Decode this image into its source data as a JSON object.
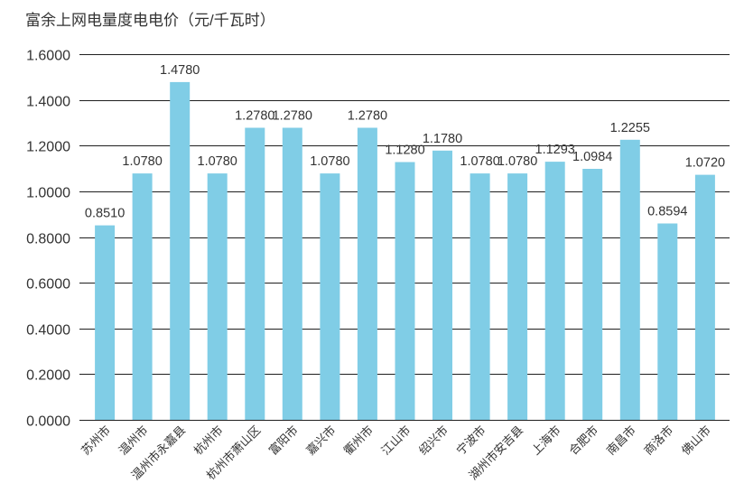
{
  "chart_data": {
    "type": "bar",
    "title": "富余上网电量度电电价（元/千瓦时）",
    "xlabel": "",
    "ylabel": "",
    "categories": [
      "苏州市",
      "温州市",
      "温州市永嘉县",
      "杭州市",
      "杭州市萧山区",
      "富阳市",
      "嘉兴市",
      "衢州市",
      "江山市",
      "绍兴市",
      "宁波市",
      "湖州市安吉县",
      "上海市",
      "合肥市",
      "南昌市",
      "商洛市",
      "佛山市"
    ],
    "values": [
      0.851,
      1.078,
      1.478,
      1.078,
      1.278,
      1.278,
      1.078,
      1.278,
      1.128,
      1.178,
      1.078,
      1.078,
      1.1293,
      1.0984,
      1.2255,
      0.8594,
      1.072
    ],
    "value_decimals": 4,
    "ylim": [
      0,
      1.6
    ],
    "ytick_step": 0.2,
    "grid": true,
    "legend": "none"
  },
  "colors": {
    "bar": "#80cde6",
    "grid": "#1f1f1f",
    "text": "#333333"
  }
}
